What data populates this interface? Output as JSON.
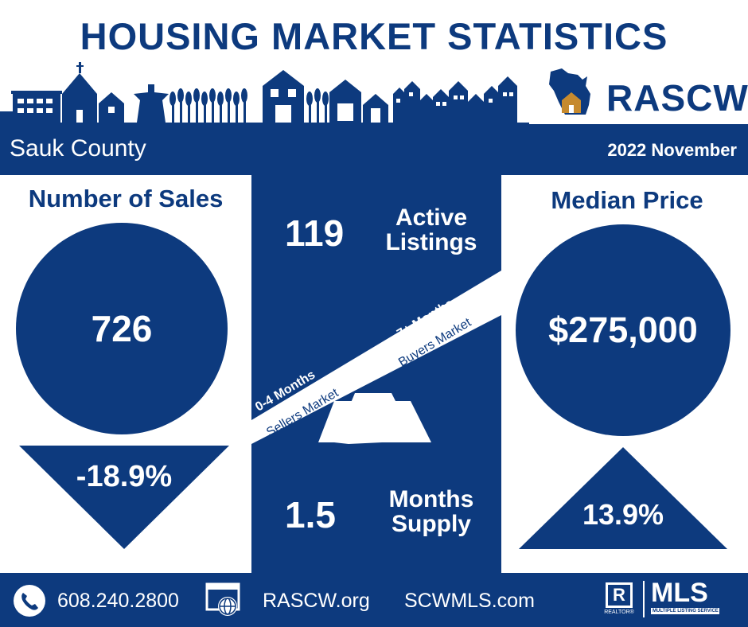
{
  "header": {
    "title": "HOUSING MARKET STATISTICS",
    "logo_text": "RASCW"
  },
  "band": {
    "county": "Sauk County",
    "period": "2022 November"
  },
  "sales": {
    "heading": "Number of Sales",
    "value": "726",
    "change": "-18.9%",
    "direction": "down"
  },
  "active": {
    "value": "119",
    "label_line1": "Active",
    "label_line2": "Listings"
  },
  "seesaw": {
    "left_top": "0-4 Months",
    "left_bottom": "Sellers Market",
    "right_top": "7+ Months",
    "right_bottom": "Buyers Market"
  },
  "supply": {
    "value": "1.5",
    "label_line1": "Months",
    "label_line2": "Supply"
  },
  "price": {
    "heading": "Median Price",
    "value": "$275,000",
    "change": "13.9%",
    "direction": "up"
  },
  "footer": {
    "phone": "608.240.2800",
    "site1": "RASCW.org",
    "site2": "SCWMLS.com",
    "realtor_mark": "R",
    "realtor_text": "REALTOR®",
    "mls_text": "MLS",
    "mls_sub": "MULTIPLE LISTING SERVICE"
  },
  "icons": [
    "phone-icon",
    "web-icon",
    "realtor-icon",
    "mls-logo",
    "wisconsin-house-icon",
    "town-skyline"
  ],
  "colors": {
    "navy": "#0d3a7e",
    "white": "#ffffff",
    "gold": "#c68a2e"
  }
}
